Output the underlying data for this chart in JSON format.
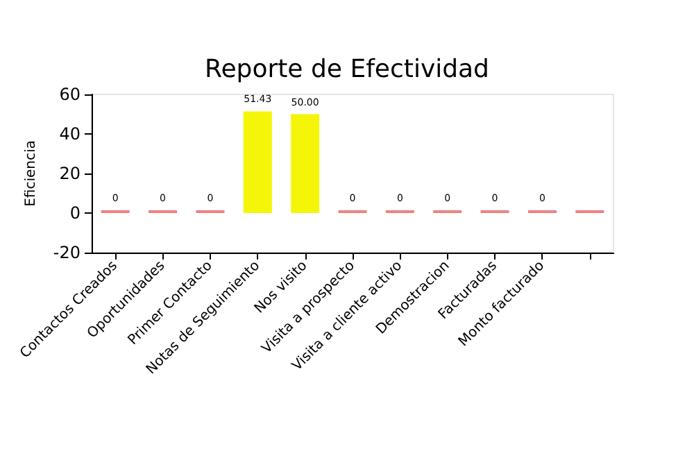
{
  "chart_data": {
    "type": "bar",
    "title": "Reporte de Efectividad",
    "ylabel": "Eficiencia",
    "categories": [
      "Contactos Creados",
      "Oportunidades",
      "Primer Contacto",
      "Notas de Seguimiento",
      "Nos visito",
      "Visita a prospecto",
      "Visita a cliente activo",
      "Demostracion",
      "Facturadas",
      "Monto facturado",
      null
    ],
    "values": [
      0,
      0,
      0,
      51.43,
      50,
      0,
      0,
      0,
      0,
      0,
      0
    ],
    "value_labels": [
      "0",
      "0",
      "0",
      "51.43",
      "50.00",
      "0",
      "0",
      "0",
      "0",
      "0",
      null
    ],
    "colors": [
      "#f08080",
      "#f08080",
      "#f08080",
      "#f5f50a",
      "#f5f50a",
      "#f08080",
      "#f08080",
      "#f08080",
      "#f08080",
      "#f08080",
      "#f08080"
    ],
    "ylim": [
      -20,
      60
    ],
    "yticks": [
      -20,
      0,
      20,
      40,
      60
    ],
    "grid": false
  }
}
